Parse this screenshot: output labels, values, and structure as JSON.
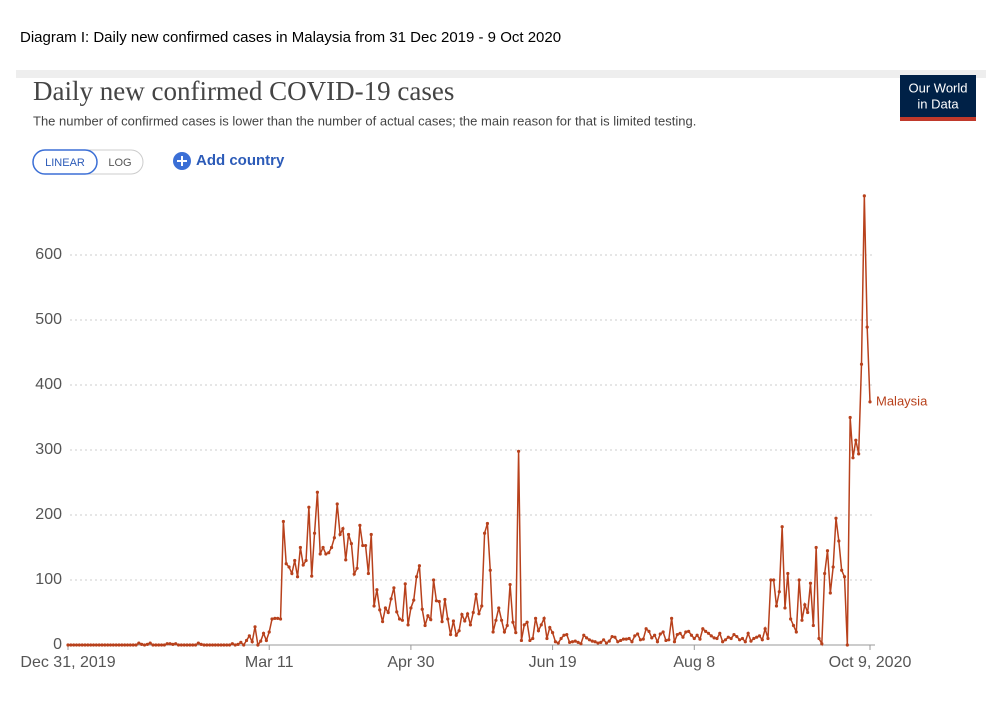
{
  "caption": "Diagram I: Daily new confirmed cases in Malaysia from 31 Dec 2019 - 9  Oct 2020",
  "controls": {
    "scale_buttons": [
      "LINEAR",
      "LOG"
    ],
    "add_button": "Add country"
  },
  "logo": [
    "Our World",
    "in Data"
  ],
  "chart_data": {
    "type": "line",
    "title": "Daily new confirmed COVID-19 cases",
    "subtitle": "The number of confirmed cases is lower than the number of actual cases; the main reason for that is limited testing.",
    "x": [
      "2019-12-31",
      "2020-01-01",
      "2020-01-02",
      "2020-01-03",
      "2020-01-04",
      "2020-01-05",
      "2020-01-06",
      "2020-01-07",
      "2020-01-08",
      "2020-01-09",
      "2020-01-10",
      "2020-01-11",
      "2020-01-12",
      "2020-01-13",
      "2020-01-14",
      "2020-01-15",
      "2020-01-16",
      "2020-01-17",
      "2020-01-18",
      "2020-01-19",
      "2020-01-20",
      "2020-01-21",
      "2020-01-22",
      "2020-01-23",
      "2020-01-24",
      "2020-01-25",
      "2020-01-26",
      "2020-01-27",
      "2020-01-28",
      "2020-01-29",
      "2020-01-30",
      "2020-01-31",
      "2020-02-01",
      "2020-02-02",
      "2020-02-03",
      "2020-02-04",
      "2020-02-05",
      "2020-02-06",
      "2020-02-07",
      "2020-02-08",
      "2020-02-09",
      "2020-02-10",
      "2020-02-11",
      "2020-02-12",
      "2020-02-13",
      "2020-02-14",
      "2020-02-15",
      "2020-02-16",
      "2020-02-17",
      "2020-02-18",
      "2020-02-19",
      "2020-02-20",
      "2020-02-21",
      "2020-02-22",
      "2020-02-23",
      "2020-02-24",
      "2020-02-25",
      "2020-02-26",
      "2020-02-27",
      "2020-02-28",
      "2020-02-29",
      "2020-03-01",
      "2020-03-02",
      "2020-03-03",
      "2020-03-04",
      "2020-03-05",
      "2020-03-06",
      "2020-03-07",
      "2020-03-08",
      "2020-03-09",
      "2020-03-10",
      "2020-03-11",
      "2020-03-12",
      "2020-03-13",
      "2020-03-14",
      "2020-03-15",
      "2020-03-16",
      "2020-03-17",
      "2020-03-18",
      "2020-03-19",
      "2020-03-20",
      "2020-03-21",
      "2020-03-22",
      "2020-03-23",
      "2020-03-24",
      "2020-03-25",
      "2020-03-26",
      "2020-03-27",
      "2020-03-28",
      "2020-03-29",
      "2020-03-30",
      "2020-03-31",
      "2020-04-01",
      "2020-04-02",
      "2020-04-03",
      "2020-04-04",
      "2020-04-05",
      "2020-04-06",
      "2020-04-07",
      "2020-04-08",
      "2020-04-09",
      "2020-04-10",
      "2020-04-11",
      "2020-04-12",
      "2020-04-13",
      "2020-04-14",
      "2020-04-15",
      "2020-04-16",
      "2020-04-17",
      "2020-04-18",
      "2020-04-19",
      "2020-04-20",
      "2020-04-21",
      "2020-04-22",
      "2020-04-23",
      "2020-04-24",
      "2020-04-25",
      "2020-04-26",
      "2020-04-27",
      "2020-04-28",
      "2020-04-29",
      "2020-04-30",
      "2020-05-01",
      "2020-05-02",
      "2020-05-03",
      "2020-05-04",
      "2020-05-05",
      "2020-05-06",
      "2020-05-07",
      "2020-05-08",
      "2020-05-09",
      "2020-05-10",
      "2020-05-11",
      "2020-05-12",
      "2020-05-13",
      "2020-05-14",
      "2020-05-15",
      "2020-05-16",
      "2020-05-17",
      "2020-05-18",
      "2020-05-19",
      "2020-05-20",
      "2020-05-21",
      "2020-05-22",
      "2020-05-23",
      "2020-05-24",
      "2020-05-25",
      "2020-05-26",
      "2020-05-27",
      "2020-05-28",
      "2020-05-29",
      "2020-05-30",
      "2020-05-31",
      "2020-06-01",
      "2020-06-02",
      "2020-06-03",
      "2020-06-04",
      "2020-06-05",
      "2020-06-06",
      "2020-06-07",
      "2020-06-08",
      "2020-06-09",
      "2020-06-10",
      "2020-06-11",
      "2020-06-12",
      "2020-06-13",
      "2020-06-14",
      "2020-06-15",
      "2020-06-16",
      "2020-06-17",
      "2020-06-18",
      "2020-06-19",
      "2020-06-20",
      "2020-06-21",
      "2020-06-22",
      "2020-06-23",
      "2020-06-24",
      "2020-06-25",
      "2020-06-26",
      "2020-06-27",
      "2020-06-28",
      "2020-06-29",
      "2020-06-30",
      "2020-07-01",
      "2020-07-02",
      "2020-07-03",
      "2020-07-04",
      "2020-07-05",
      "2020-07-06",
      "2020-07-07",
      "2020-07-08",
      "2020-07-09",
      "2020-07-10",
      "2020-07-11",
      "2020-07-12",
      "2020-07-13",
      "2020-07-14",
      "2020-07-15",
      "2020-07-16",
      "2020-07-17",
      "2020-07-18",
      "2020-07-19",
      "2020-07-20",
      "2020-07-21",
      "2020-07-22",
      "2020-07-23",
      "2020-07-24",
      "2020-07-25",
      "2020-07-26",
      "2020-07-27",
      "2020-07-28",
      "2020-07-29",
      "2020-07-30",
      "2020-07-31",
      "2020-08-01",
      "2020-08-02",
      "2020-08-03",
      "2020-08-04",
      "2020-08-05",
      "2020-08-06",
      "2020-08-07",
      "2020-08-08",
      "2020-08-09",
      "2020-08-10",
      "2020-08-11",
      "2020-08-12",
      "2020-08-13",
      "2020-08-14",
      "2020-08-15",
      "2020-08-16",
      "2020-08-17",
      "2020-08-18",
      "2020-08-19",
      "2020-08-20",
      "2020-08-21",
      "2020-08-22",
      "2020-08-23",
      "2020-08-24",
      "2020-08-25",
      "2020-08-26",
      "2020-08-27",
      "2020-08-28",
      "2020-08-29",
      "2020-08-30",
      "2020-08-31",
      "2020-09-01",
      "2020-09-02",
      "2020-09-03",
      "2020-09-04",
      "2020-09-05",
      "2020-09-06",
      "2020-09-07",
      "2020-09-08",
      "2020-09-09",
      "2020-09-10",
      "2020-09-11",
      "2020-09-12",
      "2020-09-13",
      "2020-09-14",
      "2020-09-15",
      "2020-09-16",
      "2020-09-17",
      "2020-09-18",
      "2020-09-19",
      "2020-09-20",
      "2020-09-21",
      "2020-09-22",
      "2020-09-23",
      "2020-09-24",
      "2020-09-25",
      "2020-09-26",
      "2020-09-27",
      "2020-09-28",
      "2020-09-29",
      "2020-09-30",
      "2020-10-01",
      "2020-10-02",
      "2020-10-03",
      "2020-10-04",
      "2020-10-05",
      "2020-10-06",
      "2020-10-07",
      "2020-10-08",
      "2020-10-09"
    ],
    "series": [
      {
        "name": "Malaysia",
        "color": "#b8411c",
        "values": [
          0,
          0,
          0,
          0,
          0,
          0,
          0,
          0,
          0,
          0,
          0,
          0,
          0,
          0,
          0,
          0,
          0,
          0,
          0,
          0,
          0,
          0,
          0,
          0,
          0,
          3,
          1,
          0,
          1,
          3,
          0,
          0,
          0,
          0,
          0,
          2,
          2,
          1,
          2,
          0,
          0,
          0,
          0,
          0,
          0,
          0,
          3,
          1,
          0,
          0,
          0,
          0,
          0,
          0,
          0,
          0,
          0,
          0,
          2,
          0,
          1,
          4,
          0,
          7,
          14,
          5,
          28,
          0,
          6,
          18,
          7,
          20,
          40,
          41,
          41,
          40,
          190,
          125,
          120,
          110,
          130,
          105,
          150,
          123,
          130,
          212,
          106,
          172,
          235,
          140,
          150,
          140,
          142,
          150,
          165,
          217,
          170,
          179,
          131,
          170,
          156,
          109,
          118,
          184,
          153,
          153,
          110,
          170,
          60,
          85,
          54,
          36,
          57,
          50,
          71,
          88,
          51,
          40,
          38,
          94,
          31,
          57,
          69,
          105,
          122,
          55,
          30,
          45,
          39,
          100,
          68,
          67,
          36,
          70,
          40,
          16,
          37,
          15,
          22,
          47,
          37,
          48,
          31,
          50,
          78,
          48,
          60,
          172,
          187,
          115,
          20,
          38,
          57,
          38,
          20,
          30,
          93,
          35,
          19,
          298,
          7,
          31,
          35,
          7,
          10,
          41,
          22,
          31,
          41,
          10,
          27,
          19,
          5,
          3,
          10,
          15,
          16,
          4,
          5,
          6,
          4,
          2,
          15,
          11,
          8,
          6,
          5,
          3,
          4,
          8,
          3,
          6,
          13,
          12,
          5,
          7,
          9,
          9,
          10,
          5,
          14,
          17,
          8,
          9,
          25,
          21,
          11,
          15,
          5,
          17,
          20,
          7,
          8,
          41,
          5,
          16,
          18,
          12,
          20,
          21,
          15,
          10,
          15,
          9,
          25,
          21,
          18,
          14,
          11,
          10,
          18,
          5,
          8,
          12,
          10,
          16,
          13,
          8,
          10,
          5,
          18,
          6,
          10,
          12,
          14,
          8,
          25,
          10,
          100,
          100,
          60,
          82,
          182,
          57,
          110,
          40,
          30,
          20,
          100,
          38,
          62,
          50,
          95,
          30,
          150,
          10,
          2,
          110,
          145,
          80,
          120,
          195,
          160,
          115,
          105,
          0,
          350,
          288,
          315,
          294,
          432,
          691,
          489,
          374
        ]
      }
    ],
    "xlim": [
      "2019-12-31",
      "2020-10-09"
    ],
    "xticks": [
      {
        "value": "2019-12-31",
        "label": "Dec 31, 2019"
      },
      {
        "value": "2020-03-11",
        "label": "Mar 11"
      },
      {
        "value": "2020-04-30",
        "label": "Apr 30"
      },
      {
        "value": "2020-06-19",
        "label": "Jun 19"
      },
      {
        "value": "2020-08-08",
        "label": "Aug 8"
      },
      {
        "value": "2020-10-09",
        "label": "Oct 9, 2020"
      }
    ],
    "ylim": [
      0,
      700
    ],
    "yticks": [
      0,
      100,
      200,
      300,
      400,
      500,
      600
    ],
    "grid": true
  }
}
